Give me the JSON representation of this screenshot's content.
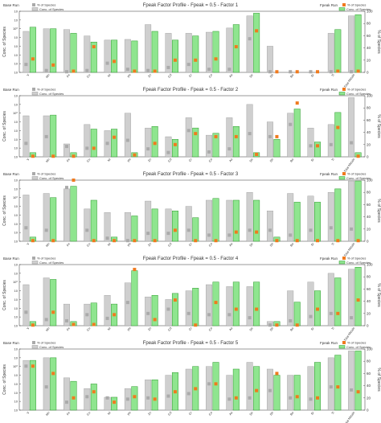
{
  "colors": {
    "base_bar": "#cfcfcf",
    "base_bar_edge": "#9a9a9a",
    "fpeak_bar": "#8fe58f",
    "fpeak_bar_edge": "#2e9a2e",
    "base_pct": "#aaaaaa",
    "fpeak_pct": "#f07a1e",
    "axis": "#555555",
    "grid": "#e6e6e6"
  },
  "legend": {
    "left_title": "Base Run",
    "right_title": "Fpeak Run",
    "pct_label": "% of Species",
    "conc_label": "Conc. of Species"
  },
  "chart_data": [
    {
      "type": "bar",
      "title": "Fpeak Factor Profile - Fpeak = 0.5 - Factor 1",
      "ylabel": "Conc. of Species",
      "y2label": "% of Species",
      "yscale": "log",
      "ylim": [
        1e-05,
        100
      ],
      "y2lim": [
        0,
        100
      ],
      "y2ticks": [
        0,
        20,
        40,
        60,
        80,
        100
      ],
      "categories": [
        "V",
        "Mn",
        "Fe",
        "Cu",
        "Ni",
        "Pb",
        "Zn",
        "Cd",
        "Cr",
        "Co",
        "As",
        "Se",
        "Sb",
        "Ba",
        "Sr",
        "Ti",
        "Total Metals"
      ],
      "series": [
        {
          "name": "Conc. of Species",
          "run": "Base Run",
          "values": [
            0.5,
            1.0,
            0.8,
            0.15,
            0.05,
            0.06,
            3.0,
            0.3,
            0.3,
            0.4,
            1.2,
            30,
            0.01,
            1e-05,
            1e-05,
            0.3,
            30
          ]
        },
        {
          "name": "Conc. of Species",
          "run": "Fpeak Run",
          "values": [
            1.5,
            1.0,
            0.3,
            0.03,
            0.05,
            0.04,
            0.5,
            0.05,
            0.15,
            0.5,
            3.0,
            60,
            1e-05,
            1e-05,
            1e-05,
            0.8,
            40
          ]
        },
        {
          "name": "% of Species",
          "run": "Base Run",
          "values": [
            13,
            3,
            1,
            3,
            15,
            5,
            3,
            8,
            13,
            5,
            5,
            55,
            1,
            1,
            1,
            1,
            1
          ]
        },
        {
          "name": "% of Species",
          "run": "Fpeak Run",
          "values": [
            22,
            12,
            2,
            42,
            18,
            2,
            2,
            20,
            20,
            22,
            42,
            68,
            1,
            1,
            1,
            2,
            2
          ]
        }
      ]
    },
    {
      "type": "bar",
      "title": "Fpeak Factor Profile - Fpeak = 0.5 - Factor 2",
      "ylabel": "Conc. of Species",
      "y2label": "% of Species",
      "yscale": "log",
      "ylim": [
        1e-05,
        100
      ],
      "y2lim": [
        0,
        100
      ],
      "y2ticks": [
        0,
        20,
        40,
        60,
        80,
        100
      ],
      "categories": [
        "V",
        "Mn",
        "Fe",
        "Cu",
        "Ni",
        "Pb",
        "Zn",
        "Cd",
        "Cr",
        "Co",
        "As",
        "Se",
        "Sb",
        "Ba",
        "Sr",
        "Ti",
        "Total Metals"
      ],
      "series": [
        {
          "name": "Conc. of Species",
          "run": "Base Run",
          "values": [
            0.5,
            0.5,
            0.0003,
            0.05,
            0.01,
            1.0,
            0.02,
            0.002,
            0.3,
            0.003,
            0.3,
            10,
            0.1,
            1.0,
            0.02,
            0.05,
            60
          ]
        },
        {
          "name": "Conc. of Species",
          "run": "Fpeak Run",
          "values": [
            3e-05,
            0.6,
            3e-05,
            0.015,
            0.015,
            3e-05,
            0.03,
            0.001,
            0.02,
            0.005,
            0.03,
            3e-05,
            0.001,
            3.0,
            0.0005,
            1.2,
            3e-05
          ]
        },
        {
          "name": "% of Species",
          "run": "Base Run",
          "values": [
            22,
            33,
            17,
            14,
            22,
            27,
            13,
            7,
            43,
            8,
            13,
            38,
            33,
            53,
            18,
            20,
            23
          ]
        },
        {
          "name": "% of Species",
          "run": "Fpeak Run",
          "values": [
            1,
            1,
            1,
            14,
            32,
            3,
            22,
            20,
            38,
            33,
            33,
            4,
            33,
            88,
            18,
            48,
            1
          ]
        }
      ]
    },
    {
      "type": "bar",
      "title": "Fpeak Factor Profile - Fpeak = 0.5 - Factor 3",
      "ylabel": "Conc. of Species",
      "y2label": "% of Species",
      "yscale": "log",
      "ylim": [
        1e-05,
        100
      ],
      "y2lim": [
        0,
        100
      ],
      "y2ticks": [
        0,
        20,
        40,
        60,
        80,
        100
      ],
      "categories": [
        "V",
        "Mn",
        "Fe",
        "Cu",
        "Ni",
        "Pb",
        "Zn",
        "Cd",
        "Cr",
        "Co",
        "As",
        "Se",
        "Sb",
        "Ba",
        "Sr",
        "Ti",
        "Total Metals"
      ],
      "series": [
        {
          "name": "Conc. of Species",
          "run": "Base Run",
          "values": [
            2.0,
            3.0,
            10,
            0.05,
            0.02,
            0.02,
            0.4,
            0.05,
            0.1,
            0.5,
            0.5,
            4.0,
            0.03,
            3.0,
            1.5,
            4.0,
            80
          ]
        },
        {
          "name": "Conc. of Species",
          "run": "Fpeak Run",
          "values": [
            3e-05,
            1.0,
            20,
            0.5,
            3e-05,
            0.008,
            0.05,
            0.03,
            0.005,
            0.8,
            0.5,
            0.5,
            3e-05,
            0.3,
            0.3,
            10,
            80
          ]
        },
        {
          "name": "% of Species",
          "run": "Base Run",
          "values": [
            22,
            18,
            88,
            18,
            5,
            1,
            13,
            13,
            18,
            10,
            10,
            18,
            18,
            10,
            18,
            22,
            20
          ]
        },
        {
          "name": "% of Species",
          "run": "Fpeak Run",
          "values": [
            1,
            1,
            100,
            1,
            1,
            1,
            1,
            18,
            1,
            1,
            15,
            15,
            1,
            1,
            1,
            1,
            1
          ]
        }
      ]
    },
    {
      "type": "bar",
      "title": "Fpeak Factor Profile - Fpeak = 0.5 - Factor 4",
      "ylabel": "Conc. of Species",
      "y2label": "% of Species",
      "yscale": "log",
      "ylim": [
        1e-05,
        100
      ],
      "y2lim": [
        0,
        100
      ],
      "y2ticks": [
        0,
        20,
        40,
        60,
        80,
        100
      ],
      "categories": [
        "V",
        "Mn",
        "Fe",
        "Cu",
        "Ni",
        "Pb",
        "Zn",
        "Cd",
        "Cr",
        "Co",
        "As",
        "Se",
        "Sb",
        "Ba",
        "Sr",
        "Ti",
        "Total Metals"
      ],
      "series": [
        {
          "name": "Conc. of Species",
          "run": "Base Run",
          "values": [
            0.5,
            3.0,
            0.003,
            0.003,
            0.03,
            0.8,
            0.02,
            0.01,
            0.1,
            0.5,
            0.3,
            0.3,
            3e-05,
            0.1,
            1.0,
            10,
            30
          ]
        },
        {
          "name": "Conc. of Species",
          "run": "Fpeak Run",
          "values": [
            3e-05,
            2.0,
            3e-05,
            0.004,
            0.003,
            20,
            0.03,
            0.05,
            0.2,
            1.0,
            1.0,
            1.0,
            3e-05,
            0.005,
            0.1,
            3.0,
            50
          ]
        },
        {
          "name": "% of Species",
          "run": "Base Run",
          "values": [
            22,
            10,
            8,
            18,
            12,
            38,
            20,
            27,
            20,
            18,
            18,
            13,
            1,
            8,
            15,
            20,
            13
          ]
        },
        {
          "name": "% of Species",
          "run": "Fpeak Run",
          "values": [
            1,
            22,
            2,
            2,
            18,
            92,
            10,
            42,
            1,
            38,
            27,
            27,
            1,
            1,
            27,
            20,
            42
          ]
        }
      ]
    },
    {
      "type": "bar",
      "title": "Fpeak Factor Profile - Fpeak = 0.5 - Factor 5",
      "ylabel": "Conc. of Species",
      "y2label": "% of Species",
      "yscale": "log",
      "ylim": [
        1e-05,
        100
      ],
      "y2lim": [
        0,
        100
      ],
      "y2ticks": [
        0,
        20,
        40,
        60,
        80,
        100
      ],
      "categories": [
        "V",
        "Mn",
        "Fe",
        "Cu",
        "Ni",
        "Pb",
        "Zn",
        "Cd",
        "Cr",
        "Co",
        "As",
        "Se",
        "Sb",
        "Ba",
        "Sr",
        "Ti",
        "Total Metals"
      ],
      "series": [
        {
          "name": "Conc. of Species",
          "run": "Base Run",
          "values": [
            5.0,
            10,
            0.05,
            0.003,
            0.0003,
            0.003,
            0.03,
            0.1,
            0.5,
            1.0,
            0.1,
            3.0,
            0.5,
            0.1,
            1.0,
            10,
            60
          ]
        },
        {
          "name": "Conc. of Species",
          "run": "Fpeak Run",
          "values": [
            5.0,
            10,
            0.02,
            0.01,
            0.0003,
            0.005,
            0.03,
            0.2,
            1.0,
            3.0,
            0.5,
            1.0,
            0.1,
            0.1,
            3.0,
            20,
            60
          ]
        },
        {
          "name": "% of Species",
          "run": "Base Run",
          "values": [
            72,
            38,
            13,
            22,
            20,
            18,
            20,
            23,
            27,
            43,
            18,
            20,
            32,
            20,
            18,
            38,
            33
          ]
        },
        {
          "name": "% of Species",
          "run": "Fpeak Run",
          "values": [
            72,
            60,
            20,
            30,
            13,
            22,
            18,
            30,
            35,
            43,
            20,
            32,
            60,
            22,
            20,
            38,
            30
          ]
        }
      ]
    }
  ]
}
